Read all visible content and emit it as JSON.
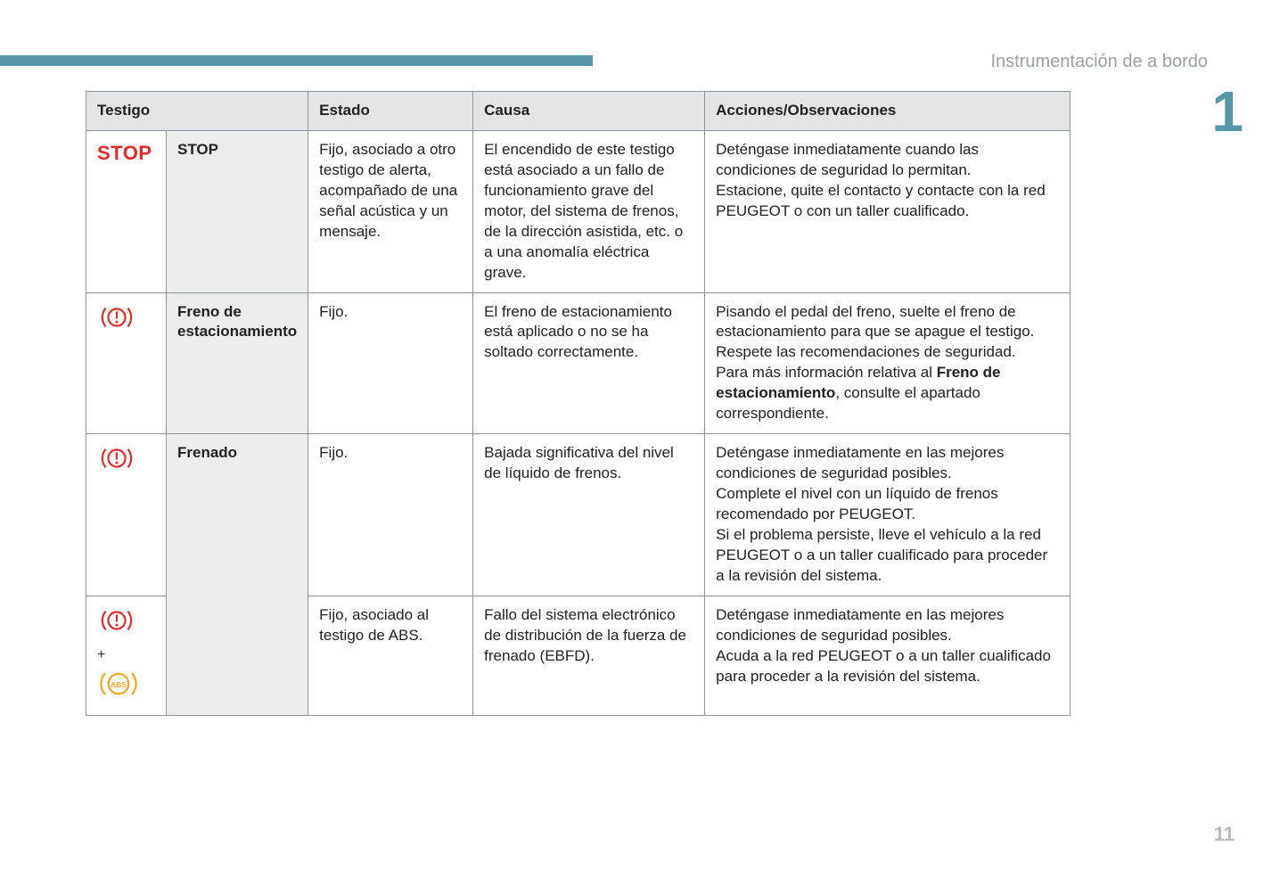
{
  "header": {
    "section_title": "Instrumentación de a bordo",
    "chapter_number": "1",
    "page_number": "11",
    "bar_color": "#5796a8"
  },
  "table": {
    "columns": [
      "Testigo",
      "Estado",
      "Causa",
      "Acciones/Observaciones"
    ],
    "rows": [
      {
        "icon": "stop",
        "name": "STOP",
        "estado": "Fijo, asociado a otro testigo de alerta, acompañado de una señal acústica y un mensaje.",
        "causa": "El encendido de este testigo está asociado a un fallo de funcionamiento grave del motor, del sistema de frenos, de la dirección asistida, etc. o a una anomalía eléctrica grave.",
        "accion": "Deténgase inmediatamente cuando las condiciones de seguridad lo permitan.\nEstacione, quite el contacto y contacte con la red PEUGEOT o con un taller cualificado."
      },
      {
        "icon": "brake",
        "name": "Freno de estacionamiento",
        "estado": "Fijo.",
        "causa": "El freno de estacionamiento está aplicado o no se ha soltado correctamente.",
        "accion_html": "Pisando el pedal del freno, suelte el freno de estacionamiento para que se apague el testigo.\nRespete las recomendaciones de seguridad.\nPara más información relativa al <b>Freno de estacionamiento</b>, consulte el apartado correspondiente."
      },
      {
        "icon": "brake",
        "name": "Frenado",
        "name_rowspan": 2,
        "estado": "Fijo.",
        "causa": "Bajada significativa del nivel de líquido de frenos.",
        "accion": "Deténgase inmediatamente en las mejores condiciones de seguridad posibles.\nComplete el nivel con un líquido de frenos recomendado por PEUGEOT.\nSi el problema persiste, lleve el vehículo a la red PEUGEOT o a un taller cualificado para proceder a la revisión del sistema."
      },
      {
        "icon": "brake-plus-abs",
        "estado": "Fijo, asociado al testigo de ABS.",
        "causa": "Fallo del sistema electrónico de distribución de la fuerza de frenado (EBFD).",
        "accion": "Deténgase inmediatamente en las mejores condiciones de seguridad posibles.\nAcuda a la red PEUGEOT o a un taller cualificado para proceder a la revisión del sistema."
      }
    ]
  },
  "colors": {
    "red": "#e52a2a",
    "amber": "#f5a623",
    "border": "#8f9497",
    "header_bg": "#e3e4e5",
    "name_bg": "#ececed"
  }
}
